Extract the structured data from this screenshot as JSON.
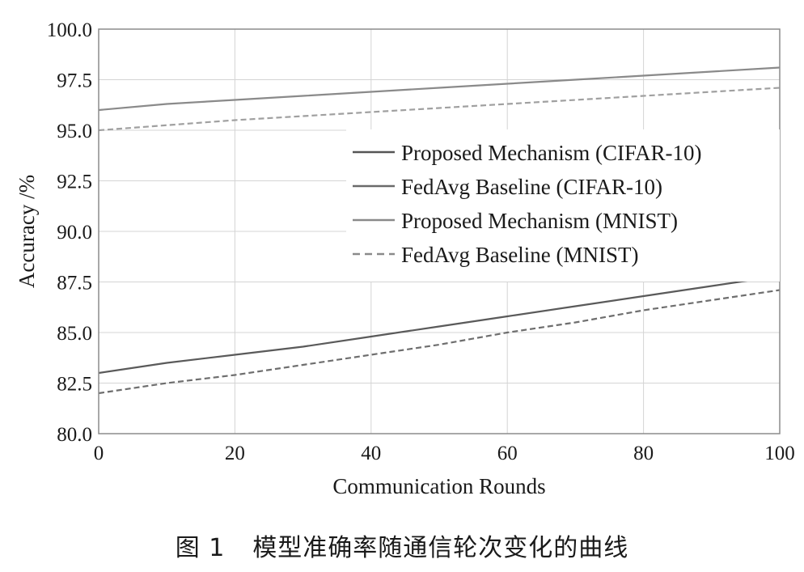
{
  "caption": {
    "figure_number": "图 1",
    "text": "模型准确率随通信轮次变化的曲线"
  },
  "chart_data": {
    "type": "line",
    "title": "",
    "xlabel": "Communication Rounds",
    "ylabel": "Accuracy /%",
    "xlim": [
      0,
      100
    ],
    "ylim": [
      80.0,
      100.0
    ],
    "xticks": [
      0,
      20,
      40,
      60,
      80,
      100
    ],
    "xtick_labels": [
      "0",
      "20",
      "40",
      "60",
      "80",
      "100"
    ],
    "yticks": [
      80.0,
      82.5,
      85.0,
      87.5,
      90.0,
      92.5,
      95.0,
      97.5,
      100.0
    ],
    "ytick_labels": [
      "80.0",
      "82.5",
      "85.0",
      "87.5",
      "90.0",
      "92.5",
      "95.0",
      "97.5",
      "100.0"
    ],
    "grid": true,
    "legend_position": "right",
    "x": [
      0,
      10,
      20,
      30,
      40,
      50,
      60,
      70,
      80,
      90,
      100
    ],
    "series": [
      {
        "name": "Proposed Mechanism (CIFAR-10)",
        "color": "#5a5a5a",
        "dash": "solid",
        "values": [
          83.0,
          83.5,
          83.9,
          84.3,
          84.8,
          85.3,
          85.8,
          86.3,
          86.8,
          87.3,
          87.8
        ]
      },
      {
        "name": "FedAvg Baseline (CIFAR-10)",
        "color": "#6e6e6e",
        "dash": "dashed",
        "values": [
          82.0,
          82.5,
          82.9,
          83.4,
          83.9,
          84.4,
          85.0,
          85.5,
          86.1,
          86.6,
          87.1
        ]
      },
      {
        "name": "Proposed Mechanism (MNIST)",
        "color": "#8a8a8a",
        "dash": "solid",
        "values": [
          96.0,
          96.3,
          96.5,
          96.7,
          96.9,
          97.1,
          97.3,
          97.5,
          97.7,
          97.9,
          98.1
        ]
      },
      {
        "name": "FedAvg Baseline (MNIST)",
        "color": "#a0a0a0",
        "dash": "dashed",
        "values": [
          95.0,
          95.25,
          95.5,
          95.7,
          95.9,
          96.1,
          96.3,
          96.5,
          96.7,
          96.9,
          97.1
        ]
      }
    ],
    "legend_styles": [
      {
        "color": "#555555",
        "dash": "solid"
      },
      {
        "color": "#6a6a6a",
        "dash": "solid"
      },
      {
        "color": "#8a8a8a",
        "dash": "solid"
      },
      {
        "color": "#8a8a8a",
        "dash": "dashed"
      }
    ]
  }
}
